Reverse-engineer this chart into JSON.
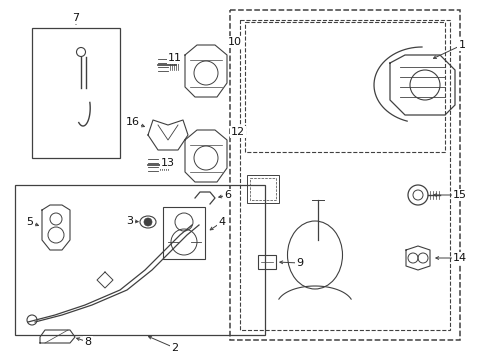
{
  "bg_color": "#ffffff",
  "line_color": "#404040",
  "text_color": "#111111",
  "fig_width": 4.89,
  "fig_height": 3.6,
  "dpi": 100
}
